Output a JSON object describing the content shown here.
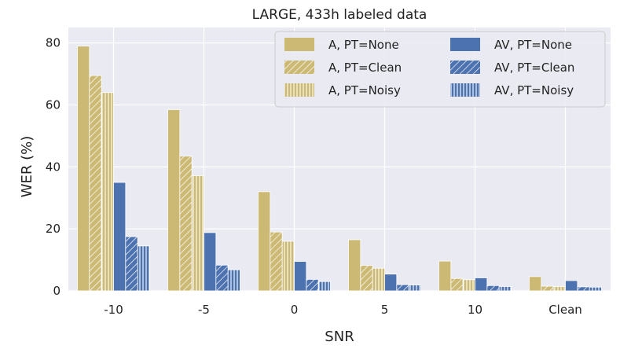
{
  "chart_data": {
    "type": "bar",
    "title": "LARGE, 433h labeled data",
    "xlabel": "SNR",
    "ylabel": "WER (%)",
    "categories": [
      "-10",
      "-5",
      "0",
      "5",
      "10",
      "Clean"
    ],
    "ylim": [
      0,
      85
    ],
    "yticks": [
      0,
      20,
      40,
      60,
      80
    ],
    "grid": true,
    "background_color": "#EAEAF2",
    "grid_color": "#FFFFFF",
    "legend_position": "top-right",
    "legend_columns": 2,
    "series": [
      {
        "name": "A, PT=None",
        "color": "#CCB974",
        "pattern": "solid",
        "values": [
          79.0,
          58.5,
          32.0,
          16.5,
          9.6,
          4.6
        ]
      },
      {
        "name": "A, PT=Clean",
        "color": "#CCB974",
        "pattern": "diagonal",
        "values": [
          69.5,
          43.5,
          19.0,
          8.2,
          4.0,
          1.5
        ]
      },
      {
        "name": "A, PT=Noisy",
        "color": "#CCB974",
        "pattern": "vertical",
        "values": [
          64.0,
          37.2,
          16.0,
          7.3,
          3.6,
          1.4
        ]
      },
      {
        "name": "AV, PT=None",
        "color": "#4C72B0",
        "pattern": "solid",
        "values": [
          35.0,
          18.8,
          9.5,
          5.4,
          4.2,
          3.3
        ]
      },
      {
        "name": "AV, PT=Clean",
        "color": "#4C72B0",
        "pattern": "diagonal",
        "values": [
          17.5,
          8.3,
          3.7,
          2.0,
          1.7,
          1.3
        ]
      },
      {
        "name": "AV, PT=Noisy",
        "color": "#4C72B0",
        "pattern": "vertical",
        "values": [
          14.5,
          6.8,
          3.0,
          1.9,
          1.4,
          1.2
        ]
      }
    ]
  }
}
